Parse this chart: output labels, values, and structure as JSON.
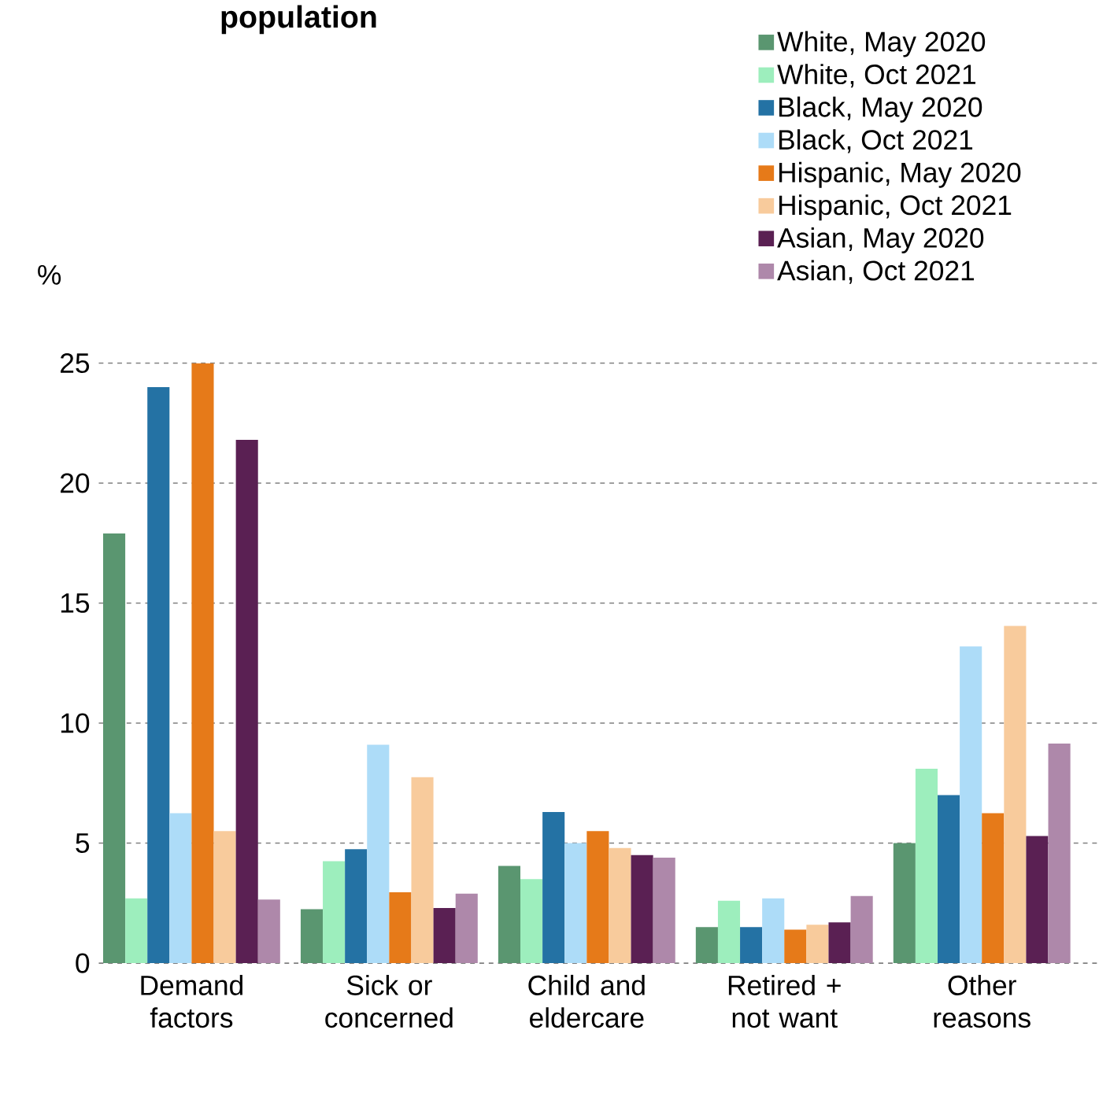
{
  "chart_data": {
    "type": "bar",
    "title": "population",
    "ylabel": "%",
    "categories": [
      "Demand factors",
      "Sick or concerned",
      "Child and eldercare",
      "Retired + not want",
      "Other reasons"
    ],
    "series": [
      {
        "name": "White, May 2020",
        "color": "#5a9670",
        "values": [
          17.9,
          2.25,
          4.05,
          1.5,
          5.0
        ]
      },
      {
        "name": "White, Oct 2021",
        "color": "#9deebd",
        "values": [
          2.7,
          4.25,
          3.5,
          2.6,
          8.1
        ]
      },
      {
        "name": "Black, May 2020",
        "color": "#2472a4",
        "values": [
          24.0,
          4.75,
          6.3,
          1.5,
          7.0
        ]
      },
      {
        "name": "Black, Oct 2021",
        "color": "#addcf8",
        "values": [
          6.25,
          9.1,
          5.0,
          2.7,
          13.2
        ]
      },
      {
        "name": "Hispanic, May 2020",
        "color": "#e67a19",
        "values": [
          25.0,
          2.95,
          5.5,
          1.4,
          6.25
        ]
      },
      {
        "name": "Hispanic, Oct 2021",
        "color": "#f8cb9c",
        "values": [
          5.5,
          7.75,
          4.8,
          1.6,
          14.05
        ]
      },
      {
        "name": "Asian, May 2020",
        "color": "#5a2053",
        "values": [
          21.8,
          2.3,
          4.5,
          1.7,
          5.3
        ]
      },
      {
        "name": "Asian, Oct 2021",
        "color": "#ae88aa",
        "values": [
          2.65,
          2.9,
          4.4,
          2.8,
          9.15
        ]
      }
    ],
    "ylim": [
      0,
      25
    ],
    "yticks": [
      0,
      5,
      10,
      15,
      20,
      25
    ],
    "grid": "y",
    "legend": "top right"
  }
}
